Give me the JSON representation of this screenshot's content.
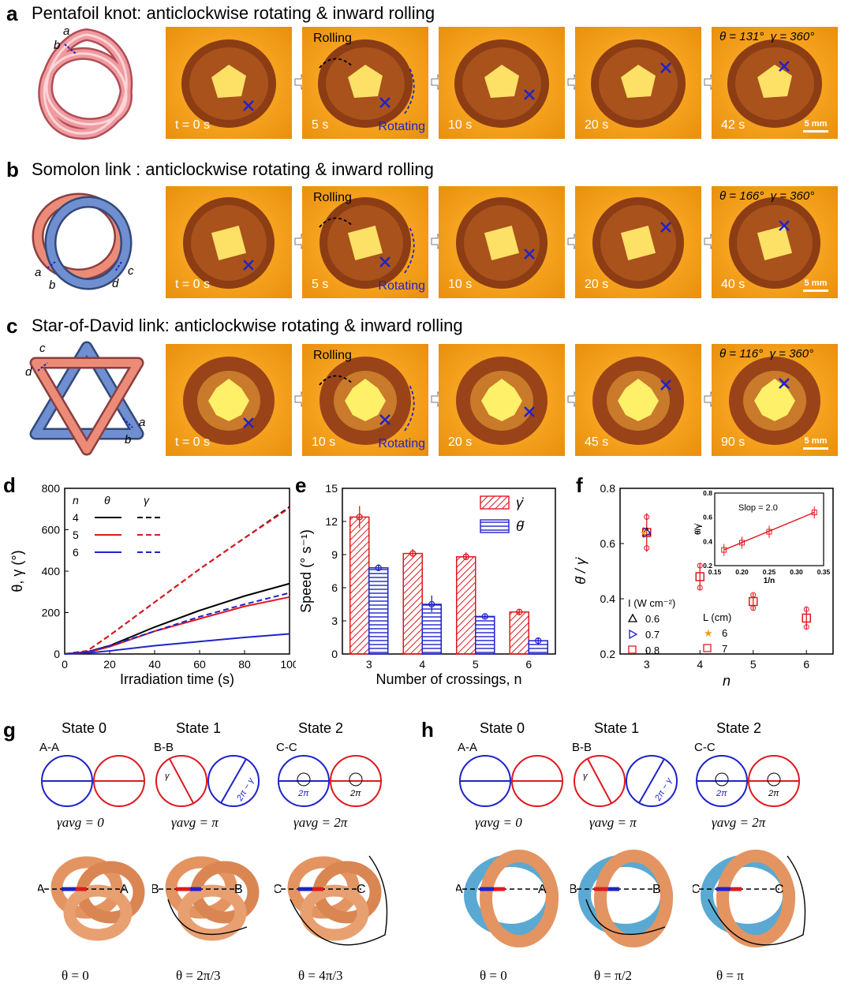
{
  "panels": {
    "a": {
      "label": "a",
      "title": "Pentafoil knot: anticlockwise rotating & inward rolling",
      "knot_marks": [
        "a",
        "b"
      ],
      "times": [
        "t = 0 s",
        "5 s",
        "10 s",
        "20 s",
        "42 s"
      ],
      "final": "θ = 131°  γ = 360°"
    },
    "b": {
      "label": "b",
      "title": "Somolon link : anticlockwise rotating & inward rolling",
      "knot_marks": [
        "a",
        "b",
        "c",
        "d"
      ],
      "times": [
        "t = 0 s",
        "5 s",
        "10 s",
        "20 s",
        "40 s"
      ],
      "final": "θ = 166°  γ = 360°"
    },
    "c": {
      "label": "c",
      "title": "Star-of-David link:  anticlockwise rotating & inward rolling",
      "knot_marks": [
        "c",
        "d",
        "a",
        "b"
      ],
      "times": [
        "t = 0 s",
        "10 s",
        "20 s",
        "45 s",
        "90 s"
      ],
      "final": "θ = 116°  γ = 360°"
    }
  },
  "annotations": {
    "rolling": "Rolling",
    "rotating": "Rotating",
    "scale": "5 mm"
  },
  "chart_d": {
    "label": "d",
    "chart_data": {
      "type": "line",
      "xlabel": "Irradiation time (s)",
      "ylabel": "θ, γ (°)",
      "xlim": [
        0,
        100
      ],
      "ylim": [
        0,
        800
      ],
      "xticks": [
        0,
        20,
        40,
        60,
        80,
        100
      ],
      "yticks": [
        0,
        200,
        400,
        600,
        800
      ],
      "legend_head": [
        "n",
        "θ",
        "γ"
      ],
      "series": [
        {
          "name": "4",
          "color": "#000000",
          "theta": [
            [
              0,
              0
            ],
            [
              10,
              10
            ],
            [
              20,
              40
            ],
            [
              40,
              130
            ],
            [
              60,
              210
            ],
            [
              80,
              280
            ],
            [
              100,
              340
            ]
          ],
          "gamma": [
            [
              0,
              0
            ],
            [
              10,
              15
            ],
            [
              20,
              90
            ],
            [
              40,
              250
            ],
            [
              60,
              410
            ],
            [
              80,
              560
            ],
            [
              100,
              710
            ]
          ]
        },
        {
          "name": "5",
          "color": "#e0191e",
          "theta": [
            [
              0,
              0
            ],
            [
              10,
              8
            ],
            [
              20,
              35
            ],
            [
              40,
              110
            ],
            [
              60,
              170
            ],
            [
              80,
              230
            ],
            [
              100,
              275
            ]
          ],
          "gamma": [
            [
              0,
              0
            ],
            [
              10,
              15
            ],
            [
              20,
              90
            ],
            [
              40,
              250
            ],
            [
              60,
              410
            ],
            [
              80,
              560
            ],
            [
              100,
              705
            ]
          ]
        },
        {
          "name": "6",
          "color": "#1f23c9",
          "theta": [
            [
              0,
              0
            ],
            [
              10,
              5
            ],
            [
              20,
              15
            ],
            [
              40,
              40
            ],
            [
              60,
              60
            ],
            [
              80,
              80
            ],
            [
              100,
              97
            ]
          ],
          "gamma": [
            [
              0,
              0
            ],
            [
              10,
              10
            ],
            [
              20,
              40
            ],
            [
              40,
              110
            ],
            [
              60,
              180
            ],
            [
              80,
              240
            ],
            [
              100,
              295
            ]
          ]
        }
      ]
    }
  },
  "chart_e": {
    "label": "e",
    "chart_data": {
      "type": "bar",
      "xlabel": "Number of crossings, n",
      "ylabel": "Speed (° s⁻¹)",
      "categories": [
        "3",
        "4",
        "5",
        "6"
      ],
      "ylim": [
        0,
        15
      ],
      "yticks": [
        0,
        3,
        6,
        9,
        12,
        15
      ],
      "series": [
        {
          "name": "γ̇",
          "color": "#e0191e",
          "values": [
            12.4,
            9.1,
            8.8,
            3.8
          ]
        },
        {
          "name": "θ̇",
          "color": "#1f23c9",
          "values": [
            7.8,
            4.5,
            3.4,
            1.2
          ]
        }
      ]
    }
  },
  "chart_f": {
    "label": "f",
    "chart_data": {
      "type": "scatter",
      "xlabel": "n",
      "ylabel": "θ̇ / γ̇",
      "xlim": [
        2.5,
        6.5
      ],
      "ylim": [
        0.2,
        0.8
      ],
      "xticks": [
        3,
        4,
        5,
        6
      ],
      "yticks": [
        0.2,
        0.4,
        0.6,
        0.8
      ],
      "points": [
        {
          "x": 3,
          "y": 0.64,
          "err": 0.07
        },
        {
          "x": 4,
          "y": 0.48,
          "err": 0.05
        },
        {
          "x": 5,
          "y": 0.39,
          "err": 0.03
        },
        {
          "x": 6,
          "y": 0.33,
          "err": 0.04
        }
      ],
      "legend": {
        "I_title": "I (W cm⁻²)",
        "I": [
          "0.6",
          "0.7",
          "0.8"
        ],
        "L_title": "L (cm)",
        "L": [
          "6",
          "7"
        ]
      },
      "inset": {
        "xlabel": "1/n",
        "ylabel": "θ̇/γ̇",
        "note": "Slop = 2.0",
        "xlim": [
          0.15,
          0.35
        ],
        "ylim": [
          0.2,
          0.8
        ],
        "xticks": [
          "0.15",
          "0.20",
          "0.25",
          "0.30",
          "0.35"
        ],
        "yticks": [
          "0.2",
          "0.4",
          "0.6",
          "0.8"
        ],
        "points": [
          [
            0.167,
            0.33
          ],
          [
            0.2,
            0.39
          ],
          [
            0.25,
            0.48
          ],
          [
            0.333,
            0.64
          ]
        ]
      }
    }
  },
  "panel_g": {
    "label": "g",
    "states": [
      "State 0",
      "State 1",
      "State 2"
    ],
    "sections": [
      "A-A",
      "B-B",
      "C-C"
    ],
    "gavg": [
      "γavg = 0",
      "γavg = π",
      "γavg = 2π"
    ],
    "theta": [
      "θ = 0",
      "θ = 2π/3",
      "θ = 4π/3"
    ],
    "markers": [
      [
        "A",
        "A"
      ],
      [
        "B",
        "B"
      ],
      [
        "C",
        "C"
      ]
    ]
  },
  "panel_h": {
    "label": "h",
    "states": [
      "State 0",
      "State 1",
      "State 2"
    ],
    "sections": [
      "A-A",
      "B-B",
      "C-C"
    ],
    "gavg": [
      "γavg = 0",
      "γavg = π",
      "γavg = 2π"
    ],
    "theta": [
      "θ = 0",
      "θ = π/2",
      "θ = π"
    ],
    "markers": [
      [
        "A",
        "A"
      ],
      [
        "B",
        "B"
      ],
      [
        "C",
        "C"
      ]
    ]
  },
  "circle_labels": {
    "gamma": "γ",
    "two_pi_minus_gamma": "2π − γ",
    "two_pi": "2π"
  }
}
